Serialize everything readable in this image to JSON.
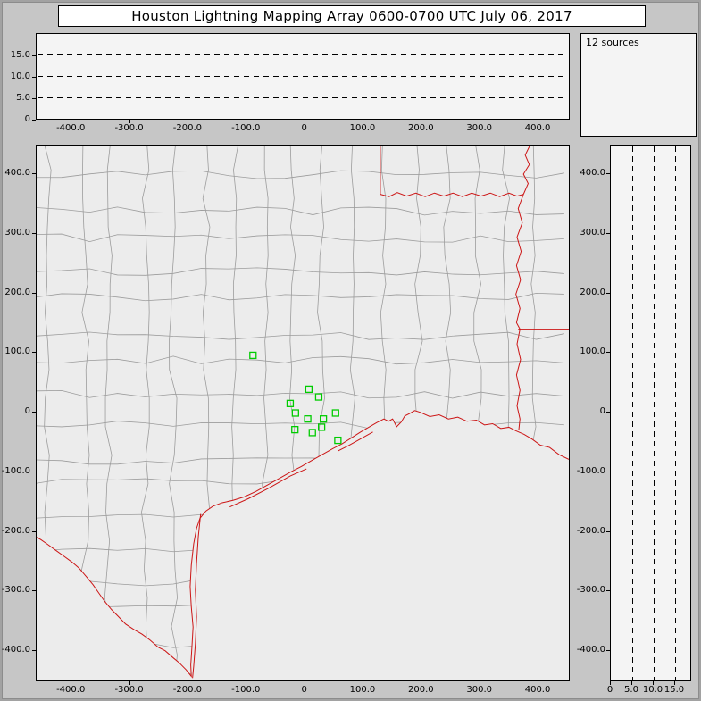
{
  "window": {
    "title": "Houston Lightning Mapping Array   0600-0700 UTC  July 06, 2017"
  },
  "sources_box": {
    "label": "12 sources"
  },
  "colors": {
    "window_bg": "#c6c6c6",
    "panel_bg": "#f4f4f4",
    "map_bg": "#ececec",
    "county_line": "#9c9c9c",
    "state_line": "#cc1515",
    "station": "#00cc00",
    "text": "#000000"
  },
  "chart_data": [
    {
      "id": "altitude-vs-eastwest",
      "type": "scatter",
      "title": "",
      "x_tick_labels": [
        "-400.0",
        "-300.0",
        "-200.0",
        "-100.0",
        "0",
        "100.0",
        "200.0",
        "300.0",
        "400.0"
      ],
      "y_tick_labels": [
        "0",
        "5.0",
        "10.0",
        "15.0"
      ],
      "xlim": [
        -460,
        455
      ],
      "ylim": [
        0,
        20
      ],
      "dashed_hlines": [
        5,
        10,
        15
      ],
      "points": [],
      "grid": "dashed-horizontal-altitude-lines"
    },
    {
      "id": "source-count-box",
      "type": "table",
      "text": "12 sources"
    },
    {
      "id": "plan-view-map",
      "type": "scatter",
      "title": "",
      "x_tick_labels": [
        "-400.0",
        "-300.0",
        "-200.0",
        "-100.0",
        "0",
        "100.0",
        "200.0",
        "300.0",
        "400.0"
      ],
      "y_tick_labels": [
        "400.0",
        "300.0",
        "200.0",
        "100.0",
        "0",
        "-100.0",
        "-200.0",
        "-300.0",
        "-400.0"
      ],
      "xlim": [
        -460,
        455
      ],
      "ylim": [
        -452,
        448
      ],
      "marker": "green-open-square",
      "stations_km": [
        [
          -88,
          95
        ],
        [
          8,
          38
        ],
        [
          25,
          25
        ],
        [
          -24,
          14
        ],
        [
          -15,
          -2
        ],
        [
          6,
          -12
        ],
        [
          33,
          -12
        ],
        [
          54,
          -2
        ],
        [
          -16,
          -30
        ],
        [
          14,
          -35
        ],
        [
          30,
          -26
        ],
        [
          58,
          -48
        ]
      ],
      "map_layers": [
        "county-borders-gray",
        "state-borders-red",
        "coastline-red"
      ]
    },
    {
      "id": "altitude-vs-northsouth",
      "type": "scatter",
      "title": "",
      "x_tick_labels": [
        "0",
        "5.0",
        "10.0",
        "15.0"
      ],
      "y_tick_labels": [
        "400.0",
        "300.0",
        "200.0",
        "100.0",
        "0",
        "-100.0",
        "-200.0",
        "-300.0",
        "-400.0"
      ],
      "xlim": [
        0,
        18.8
      ],
      "ylim": [
        -452,
        448
      ],
      "dashed_vlines": [
        5,
        10,
        15
      ],
      "points": [],
      "grid": "dashed-vertical-altitude-lines"
    }
  ]
}
